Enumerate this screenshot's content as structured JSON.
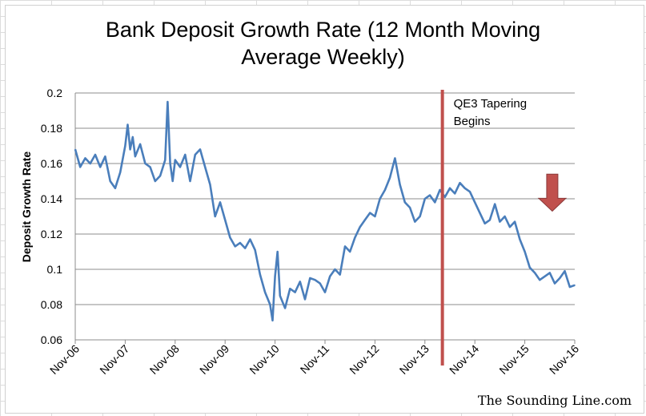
{
  "chart_data": {
    "type": "line",
    "title": "Bank Deposit Growth Rate (12 Month Moving\nAverage Weekly)",
    "ylabel": "Deposit Growth Rate",
    "xlabel": "",
    "ylim": [
      0.06,
      0.2
    ],
    "yticks": [
      "0.2",
      "0.18",
      "0.16",
      "0.14",
      "0.12",
      "0.1",
      "0.08",
      "0.06"
    ],
    "xticks": [
      "Nov-06",
      "Nov-07",
      "Nov-08",
      "Nov-09",
      "Nov-10",
      "Nov-11",
      "Nov-12",
      "Nov-13",
      "Nov-14",
      "Nov-15",
      "Nov-16"
    ],
    "grid": true,
    "series": [
      {
        "color": "#4a7ebb",
        "x": [
          0,
          0.1,
          0.2,
          0.3,
          0.4,
          0.5,
          0.6,
          0.7,
          0.8,
          0.9,
          1.0,
          1.05,
          1.1,
          1.15,
          1.2,
          1.3,
          1.4,
          1.5,
          1.6,
          1.7,
          1.8,
          1.85,
          1.9,
          1.95,
          2.0,
          2.1,
          2.2,
          2.3,
          2.4,
          2.5,
          2.6,
          2.7,
          2.8,
          2.9,
          3.0,
          3.1,
          3.2,
          3.3,
          3.4,
          3.5,
          3.6,
          3.7,
          3.8,
          3.9,
          3.95,
          4.0,
          4.05,
          4.1,
          4.2,
          4.3,
          4.4,
          4.5,
          4.6,
          4.7,
          4.8,
          4.9,
          5.0,
          5.1,
          5.2,
          5.3,
          5.4,
          5.5,
          5.6,
          5.7,
          5.8,
          5.9,
          6.0,
          6.1,
          6.2,
          6.3,
          6.4,
          6.5,
          6.6,
          6.7,
          6.8,
          6.9,
          7.0,
          7.1,
          7.2,
          7.3,
          7.4,
          7.5,
          7.6,
          7.7,
          7.8,
          7.9,
          8.0,
          8.1,
          8.2,
          8.3,
          8.4,
          8.5,
          8.6,
          8.7,
          8.8,
          8.9,
          9.0,
          9.1,
          9.2,
          9.3,
          9.4,
          9.5,
          9.6,
          9.7,
          9.8,
          9.9,
          10.0
        ],
        "values": [
          0.168,
          0.158,
          0.163,
          0.16,
          0.165,
          0.158,
          0.164,
          0.15,
          0.146,
          0.155,
          0.17,
          0.182,
          0.168,
          0.175,
          0.164,
          0.171,
          0.16,
          0.158,
          0.15,
          0.153,
          0.162,
          0.195,
          0.16,
          0.15,
          0.162,
          0.158,
          0.165,
          0.15,
          0.165,
          0.168,
          0.158,
          0.148,
          0.13,
          0.138,
          0.128,
          0.118,
          0.113,
          0.115,
          0.112,
          0.117,
          0.111,
          0.097,
          0.087,
          0.08,
          0.071,
          0.096,
          0.11,
          0.085,
          0.078,
          0.089,
          0.087,
          0.093,
          0.083,
          0.095,
          0.094,
          0.092,
          0.087,
          0.096,
          0.1,
          0.097,
          0.113,
          0.11,
          0.118,
          0.124,
          0.128,
          0.132,
          0.13,
          0.14,
          0.145,
          0.152,
          0.163,
          0.148,
          0.138,
          0.135,
          0.127,
          0.13,
          0.14,
          0.142,
          0.138,
          0.145,
          0.141,
          0.146,
          0.143,
          0.149,
          0.146,
          0.144,
          0.138,
          0.132,
          0.126,
          0.128,
          0.137,
          0.127,
          0.13,
          0.124,
          0.127,
          0.117,
          0.11,
          0.101,
          0.098,
          0.094,
          0.096,
          0.098,
          0.092,
          0.095,
          0.099,
          0.09,
          0.091
        ]
      }
    ],
    "annotations": [
      {
        "type": "vertical-line",
        "x": 7.35,
        "color": "#c0504d",
        "label_lines": [
          "QE3 Tapering",
          "Begins"
        ]
      },
      {
        "type": "arrow-down",
        "x": 9.55,
        "y_from": 0.154,
        "y_to": 0.133,
        "color": "#c0504d"
      }
    ]
  },
  "credit": "The Sounding Line.com"
}
